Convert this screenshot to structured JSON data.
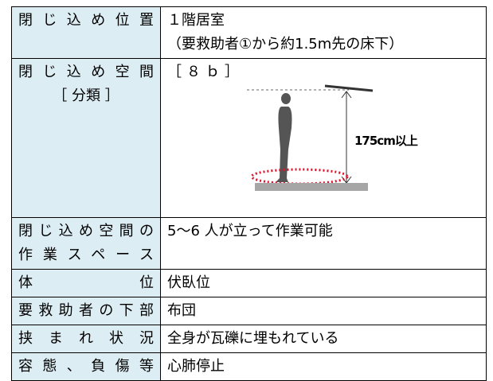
{
  "table": {
    "rows": [
      {
        "label": [
          "閉じ込め位置"
        ],
        "value": [
          "１階居室",
          "（要救助者①から約1.5m先の床下）"
        ]
      },
      {
        "label": [
          "閉じ込め空間",
          "［ 分類 ］"
        ],
        "value": [
          "［８ｂ］"
        ],
        "figure_label": "175cm以上"
      },
      {
        "label": [
          "閉じ込め空間の",
          "作業スペース"
        ],
        "value": [
          "5～6 人が立って作業可能"
        ]
      },
      {
        "label": [
          "体　　位"
        ],
        "value": [
          "伏臥位"
        ]
      },
      {
        "label": [
          "要救助者の下部"
        ],
        "value": [
          "布団"
        ]
      },
      {
        "label": [
          "挟まれ状況"
        ],
        "value": [
          "全身が瓦礫に埋もれている"
        ]
      },
      {
        "label": [
          "容態、負傷等"
        ],
        "value": [
          "心肺停止"
        ]
      }
    ]
  }
}
